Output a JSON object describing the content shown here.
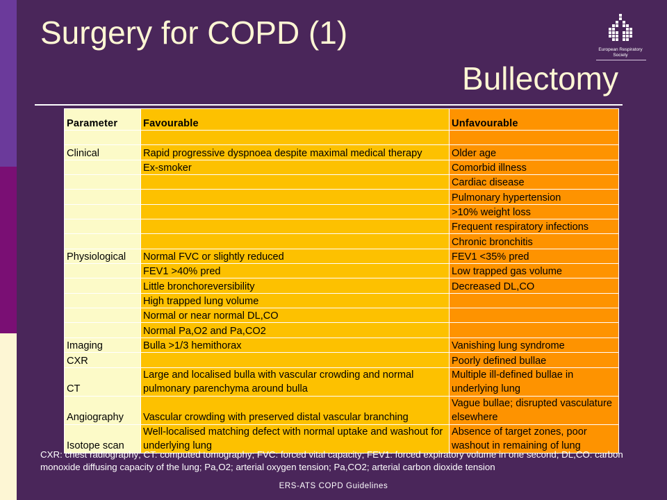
{
  "slide": {
    "title": "Surgery for COPD (1)",
    "subtitle": "Bullectomy",
    "logo_text": "European Respiratory Society",
    "footer": "ERS-ATS COPD Guidelines",
    "footnote": "CXR: chest radiography; CT: computed tomography; FVC: forced vital capacity; FEV1: forced expiratory volume in one second; DL,CO: carbon monoxide diffusing capacity of the lung; Pa,O2; arterial oxygen tension; Pa,CO2; arterial carbon dioxide tension",
    "colors": {
      "background": "#4a265a",
      "parameter_col": "#fcfac8",
      "favourable_col": "#fdc100",
      "unfavourable_col": "#fe9300",
      "title_text": "#fdf6d4"
    }
  },
  "table": {
    "headers": [
      "Parameter",
      "Favourable",
      "Unfavourable"
    ],
    "rows": [
      [
        "",
        "",
        ""
      ],
      [
        "Clinical",
        "Rapid progressive dyspnoea despite maximal medical therapy",
        "Older age"
      ],
      [
        "",
        "Ex-smoker",
        "Comorbid illness"
      ],
      [
        "",
        "",
        "Cardiac disease"
      ],
      [
        "",
        "",
        "Pulmonary hypertension"
      ],
      [
        "",
        "",
        ">10% weight loss"
      ],
      [
        "",
        "",
        "Frequent respiratory infections"
      ],
      [
        "",
        "",
        "Chronic bronchitis"
      ],
      [
        "Physiological",
        "Normal FVC or slightly reduced",
        "FEV1 <35% pred"
      ],
      [
        "",
        "FEV1 >40% pred",
        "Low trapped gas volume"
      ],
      [
        "",
        "Little bronchoreversibility",
        "Decreased DL,CO"
      ],
      [
        "",
        "High trapped lung volume",
        ""
      ],
      [
        "",
        "Normal or near normal DL,CO",
        ""
      ],
      [
        "",
        "Normal Pa,O2  and Pa,CO2",
        ""
      ],
      [
        "Imaging",
        "Bulla >1/3 hemithorax",
        "Vanishing lung syndrome"
      ],
      [
        "CXR",
        "",
        "Poorly defined bullae"
      ],
      [
        "CT",
        "Large and localised bulla with vascular crowding and normal pulmonary parenchyma around bulla",
        "Multiple ill-defined bullae in underlying lung"
      ],
      [
        "Angiography",
        "Vascular crowding with preserved distal vascular branching",
        "Vague bullae; disrupted vasculature elsewhere"
      ],
      [
        "Isotope scan",
        "Well-localised matching defect with normal uptake and washout for underlying lung",
        "Absence of target zones, poor washout in remaining of lung"
      ]
    ]
  }
}
